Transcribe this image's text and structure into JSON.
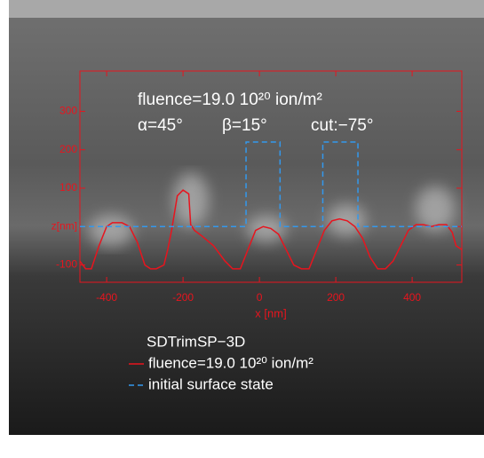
{
  "chart_data": {
    "type": "line",
    "annotations": [
      "fluence=19.0 10²⁰ ion/m²",
      "α=45°",
      "β=15°",
      "cut:−75°"
    ],
    "xlabel": "x [nm]",
    "legend_title": "SDTrimSP−3D",
    "xlim": [
      -470,
      530
    ],
    "ylim": [
      -145,
      405
    ],
    "xticks": [
      -400,
      -200,
      0,
      200,
      400
    ],
    "yticks": [
      -100,
      {
        "value": 0,
        "label": "z[nm]"
      },
      100,
      200,
      300
    ],
    "series": [
      {
        "name": "fluence=19.0 10²⁰ ion/m²",
        "color": "#e8141e",
        "style": "solid",
        "x": [
          -470,
          -455,
          -440,
          -420,
          -400,
          -385,
          -360,
          -340,
          -320,
          -300,
          -285,
          -270,
          -250,
          -240,
          -230,
          -215,
          -200,
          -185,
          -180,
          -170,
          -150,
          -120,
          -90,
          -70,
          -50,
          -30,
          -10,
          10,
          30,
          50,
          70,
          90,
          110,
          130,
          150,
          170,
          190,
          210,
          230,
          250,
          270,
          290,
          310,
          330,
          350,
          370,
          390,
          410,
          430,
          450,
          470,
          490,
          505,
          515,
          530
        ],
        "values": [
          -90,
          -110,
          -110,
          -50,
          0,
          10,
          10,
          0,
          -40,
          -100,
          -110,
          -110,
          -100,
          -60,
          -10,
          80,
          95,
          85,
          5,
          -10,
          -25,
          -50,
          -90,
          -110,
          -110,
          -60,
          -10,
          0,
          -5,
          -20,
          -60,
          -100,
          -110,
          -110,
          -60,
          -10,
          15,
          20,
          15,
          0,
          -30,
          -80,
          -110,
          -110,
          -90,
          -50,
          -10,
          5,
          5,
          0,
          5,
          5,
          -15,
          -50,
          -60
        ]
      },
      {
        "name": "initial surface state",
        "color": "#3399ee",
        "style": "dashed",
        "x": [
          -470,
          -35,
          -35,
          54,
          54,
          166,
          166,
          258,
          258,
          530
        ],
        "values": [
          0,
          0,
          220,
          220,
          0,
          0,
          220,
          220,
          0,
          0
        ]
      }
    ]
  }
}
